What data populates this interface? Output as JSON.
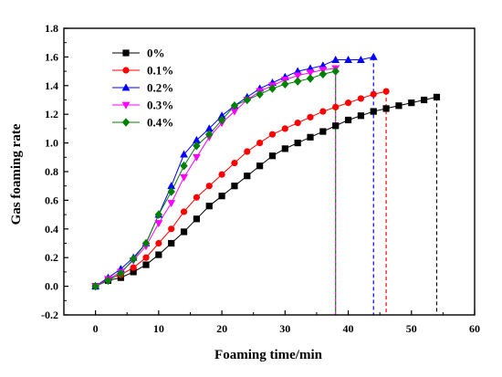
{
  "chart_data": {
    "type": "line",
    "title": "",
    "xlabel": "Foaming time/min",
    "ylabel": "Gas foaming rate",
    "xlim": [
      -5,
      60
    ],
    "ylim": [
      -0.2,
      1.8
    ],
    "xticks": [
      "0",
      "10",
      "20",
      "30",
      "40",
      "50",
      "60"
    ],
    "yticks": [
      "-0.2",
      "0.0",
      "0.2",
      "0.4",
      "0.6",
      "0.8",
      "1.0",
      "1.2",
      "1.4",
      "1.6",
      "1.8"
    ],
    "grid": false,
    "legend_position": "top-left",
    "series": [
      {
        "name": "0%",
        "color": "#000000",
        "marker": "square",
        "x": [
          0,
          2,
          4,
          6,
          8,
          10,
          12,
          14,
          16,
          18,
          20,
          22,
          24,
          26,
          28,
          30,
          32,
          34,
          36,
          38,
          40,
          42,
          44,
          46,
          48,
          50,
          52,
          54
        ],
        "y": [
          0.0,
          0.04,
          0.06,
          0.1,
          0.15,
          0.22,
          0.3,
          0.38,
          0.47,
          0.56,
          0.63,
          0.7,
          0.77,
          0.84,
          0.91,
          0.96,
          1.0,
          1.04,
          1.08,
          1.12,
          1.16,
          1.19,
          1.22,
          1.24,
          1.26,
          1.28,
          1.3,
          1.32
        ],
        "drop_line_x": 54
      },
      {
        "name": "0.1%",
        "color": "#ff0000",
        "marker": "circle",
        "x": [
          0,
          2,
          4,
          6,
          8,
          10,
          12,
          14,
          16,
          18,
          20,
          22,
          24,
          26,
          28,
          30,
          32,
          34,
          36,
          38,
          40,
          42,
          44,
          46
        ],
        "y": [
          0.0,
          0.05,
          0.08,
          0.13,
          0.2,
          0.3,
          0.4,
          0.52,
          0.62,
          0.7,
          0.78,
          0.86,
          0.94,
          1.0,
          1.06,
          1.1,
          1.14,
          1.18,
          1.22,
          1.25,
          1.28,
          1.31,
          1.34,
          1.36
        ],
        "drop_line_x": 46
      },
      {
        "name": "0.2%",
        "color": "#0000ff",
        "marker": "triangle-up",
        "x": [
          0,
          2,
          4,
          6,
          8,
          10,
          12,
          14,
          16,
          18,
          20,
          22,
          24,
          26,
          28,
          30,
          32,
          34,
          36,
          38,
          40,
          42,
          44
        ],
        "y": [
          0.0,
          0.06,
          0.12,
          0.2,
          0.3,
          0.5,
          0.7,
          0.92,
          1.02,
          1.1,
          1.19,
          1.26,
          1.32,
          1.38,
          1.42,
          1.46,
          1.5,
          1.52,
          1.54,
          1.58,
          1.58,
          1.58,
          1.6
        ],
        "drop_line_x": 44
      },
      {
        "name": "0.3%",
        "color": "#ff00ff",
        "marker": "triangle-down",
        "x": [
          0,
          2,
          4,
          6,
          8,
          10,
          12,
          14,
          16,
          18,
          20,
          22,
          24,
          26,
          28,
          30,
          32,
          34,
          36,
          38
        ],
        "y": [
          0.0,
          0.05,
          0.1,
          0.18,
          0.28,
          0.44,
          0.58,
          0.76,
          0.9,
          1.04,
          1.14,
          1.22,
          1.3,
          1.36,
          1.4,
          1.44,
          1.47,
          1.49,
          1.51,
          1.52
        ],
        "drop_line_x": 38
      },
      {
        "name": "0.4%",
        "color": "#008000",
        "marker": "diamond",
        "x": [
          0,
          2,
          4,
          6,
          8,
          10,
          12,
          14,
          16,
          18,
          20,
          22,
          24,
          26,
          28,
          30,
          32,
          34,
          36,
          38
        ],
        "y": [
          0.0,
          0.04,
          0.09,
          0.19,
          0.3,
          0.5,
          0.66,
          0.84,
          0.98,
          1.06,
          1.16,
          1.26,
          1.3,
          1.34,
          1.38,
          1.41,
          1.43,
          1.45,
          1.48,
          1.5
        ],
        "drop_line_x": 38
      }
    ]
  }
}
